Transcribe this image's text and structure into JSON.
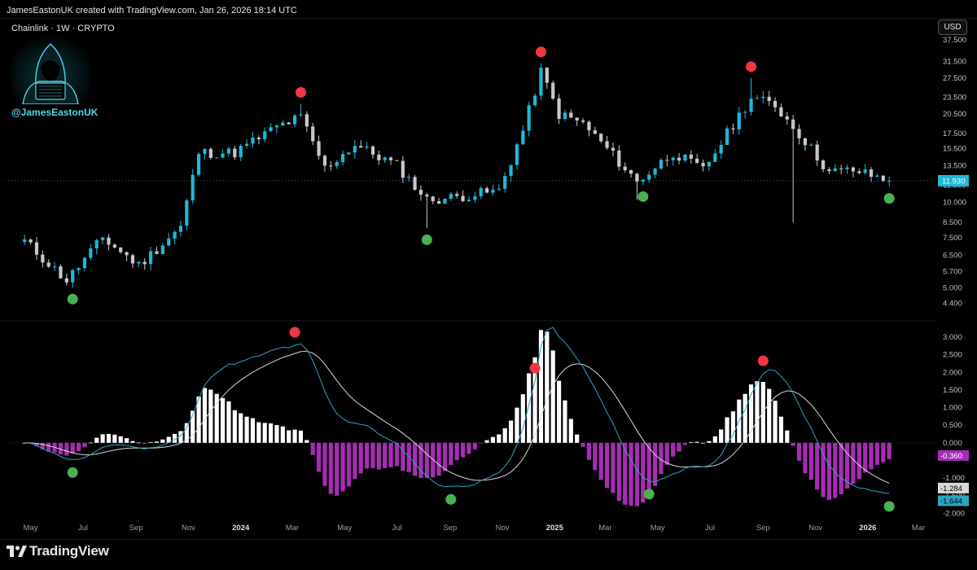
{
  "header": {
    "credit": "JamesEastonUK created with TradingView.com, Jan 26, 2026 18:14 UTC"
  },
  "symbol": {
    "title": "Chainlink · 1W · CRYPTO"
  },
  "brand": {
    "handle": "@JamesEastonUK",
    "footer_logo": "TradingView"
  },
  "toolbar": {
    "currency": "USD"
  },
  "colors": {
    "up": "#1fb8d6",
    "down": "#c8c8cc",
    "macd_line": "#2aa6c4",
    "signal_line": "#d8d8d8",
    "hist_pos": "#ffffff",
    "hist_neg": "#a62db3",
    "top_marker": "#f23645",
    "bottom_marker": "#4caf50",
    "price_tag": "#1fb8d6"
  },
  "chart_data": [
    {
      "type": "candlestick",
      "title": "Chainlink · 1W · CRYPTO",
      "ylabel": "USD",
      "yscale": "log",
      "ylim": [
        4.0,
        37.5
      ],
      "y_ticks": [
        "37.500",
        "31.500",
        "27.500",
        "23.500",
        "20.500",
        "17.500",
        "15.500",
        "13.500",
        "11.500",
        "10.000",
        "8.500",
        "7.500",
        "6.500",
        "5.700",
        "5.000",
        "4.400"
      ],
      "x_ticks": [
        "May",
        "Jul",
        "Sep",
        "Nov",
        "2024",
        "Mar",
        "May",
        "Jul",
        "Sep",
        "Nov",
        "2025",
        "Mar",
        "May",
        "Jul",
        "Sep",
        "Nov",
        "2026",
        "Mar"
      ],
      "anchors": [
        {
          "date": "2023-04-24",
          "close": 7.3
        },
        {
          "date": "2023-06-12",
          "close": 5.3
        },
        {
          "date": "2023-07-24",
          "close": 7.5
        },
        {
          "date": "2023-09-04",
          "close": 6.0
        },
        {
          "date": "2023-10-23",
          "close": 8.2
        },
        {
          "date": "2023-11-13",
          "close": 15.0
        },
        {
          "date": "2023-12-25",
          "close": 15.0
        },
        {
          "date": "2024-02-12",
          "close": 18.5
        },
        {
          "date": "2024-03-11",
          "close": 20.0
        },
        {
          "date": "2024-04-08",
          "close": 13.2
        },
        {
          "date": "2024-05-13",
          "close": 16.0
        },
        {
          "date": "2024-07-01",
          "close": 13.5
        },
        {
          "date": "2024-08-05",
          "close": 10.2
        },
        {
          "date": "2024-09-02",
          "close": 10.4
        },
        {
          "date": "2024-10-28",
          "close": 11.0
        },
        {
          "date": "2024-11-25",
          "close": 18.0
        },
        {
          "date": "2024-12-16",
          "close": 29.0
        },
        {
          "date": "2025-01-06",
          "close": 20.5
        },
        {
          "date": "2025-02-03",
          "close": 19.0
        },
        {
          "date": "2025-03-03",
          "close": 15.5
        },
        {
          "date": "2025-04-07",
          "close": 11.8
        },
        {
          "date": "2025-05-19",
          "close": 15.0
        },
        {
          "date": "2025-06-23",
          "close": 13.0
        },
        {
          "date": "2025-07-21",
          "close": 17.5
        },
        {
          "date": "2025-08-18",
          "close": 23.5
        },
        {
          "date": "2025-09-15",
          "close": 22.0
        },
        {
          "date": "2025-10-13",
          "close": 17.5
        },
        {
          "date": "2025-11-17",
          "close": 12.8
        },
        {
          "date": "2025-12-15",
          "close": 13.0
        },
        {
          "date": "2026-01-26",
          "close": 11.93
        }
      ],
      "extremes": [
        {
          "date": "2023-06-19",
          "low": 5.0
        },
        {
          "date": "2024-03-11",
          "high": 22.3
        },
        {
          "date": "2024-08-05",
          "low": 8.1
        },
        {
          "date": "2024-12-16",
          "high": 31.0
        },
        {
          "date": "2025-04-07",
          "low": 10.2
        },
        {
          "date": "2025-08-18",
          "high": 27.5
        },
        {
          "date": "2025-10-06",
          "low": 8.5
        }
      ],
      "top_markers": [
        "2024-03-11",
        "2024-12-16",
        "2025-08-18"
      ],
      "bottom_markers": [
        "2023-06-19",
        "2024-08-05",
        "2025-04-14",
        "2026-01-26"
      ],
      "last_price": "11.930"
    },
    {
      "type": "line+bar",
      "name": "MACD",
      "ylim": [
        -2.2,
        3.3
      ],
      "y_ticks": [
        "3.000",
        "2.500",
        "2.000",
        "1.500",
        "1.000",
        "0.500",
        "0.000",
        "-1.000",
        "-2.000"
      ],
      "labels": {
        "histogram": "-0.360",
        "signal": "-1.284",
        "macd_a": "-1.500",
        "macd_b": "-1.644"
      },
      "top_markers": [
        "2024-03-04",
        "2024-12-09",
        "2025-09-01"
      ],
      "bottom_markers": [
        "2023-06-19",
        "2024-09-02",
        "2025-04-21",
        "2026-01-26"
      ]
    }
  ]
}
